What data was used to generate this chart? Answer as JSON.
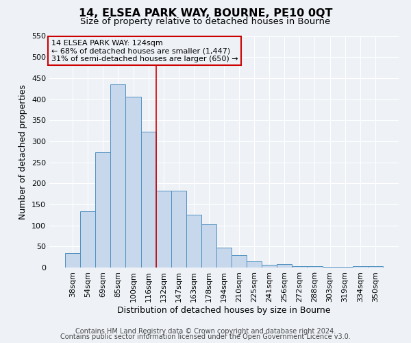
{
  "title": "14, ELSEA PARK WAY, BOURNE, PE10 0QT",
  "subtitle": "Size of property relative to detached houses in Bourne",
  "xlabel": "Distribution of detached houses by size in Bourne",
  "ylabel": "Number of detached properties",
  "bar_labels": [
    "38sqm",
    "54sqm",
    "69sqm",
    "85sqm",
    "100sqm",
    "116sqm",
    "132sqm",
    "147sqm",
    "163sqm",
    "178sqm",
    "194sqm",
    "210sqm",
    "225sqm",
    "241sqm",
    "256sqm",
    "272sqm",
    "288sqm",
    "303sqm",
    "319sqm",
    "334sqm",
    "350sqm"
  ],
  "bar_heights": [
    35,
    133,
    273,
    435,
    405,
    323,
    182,
    182,
    125,
    103,
    47,
    30,
    15,
    7,
    8,
    3,
    3,
    2,
    2,
    3,
    3
  ],
  "bar_color": "#c8d8ec",
  "bar_edge_color": "#5090c0",
  "ylim": [
    0,
    550
  ],
  "yticks": [
    0,
    50,
    100,
    150,
    200,
    250,
    300,
    350,
    400,
    450,
    500,
    550
  ],
  "vline_x": 5.5,
  "vline_color": "#cc0000",
  "annotation_title": "14 ELSEA PARK WAY: 124sqm",
  "annotation_line1": "← 68% of detached houses are smaller (1,447)",
  "annotation_line2": "31% of semi-detached houses are larger (650) →",
  "annotation_box_color": "#cc0000",
  "footer1": "Contains HM Land Registry data © Crown copyright and database right 2024.",
  "footer2": "Contains public sector information licensed under the Open Government Licence v3.0.",
  "bg_color": "#eef2f7",
  "grid_color": "#ffffff",
  "title_fontsize": 11.5,
  "subtitle_fontsize": 9.5,
  "axis_label_fontsize": 9,
  "tick_fontsize": 8,
  "annotation_fontsize": 8,
  "footer_fontsize": 7
}
